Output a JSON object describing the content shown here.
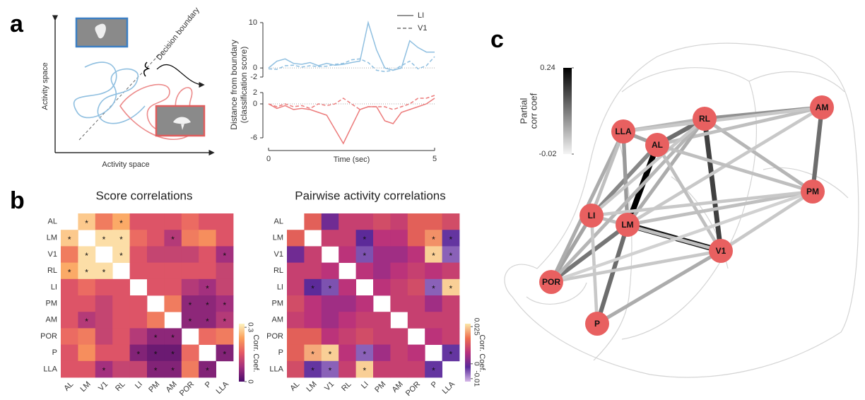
{
  "panel_labels": [
    "a",
    "b",
    "c"
  ],
  "schematic": {
    "x_label": "Activity space",
    "y_label": "Activity space",
    "boundary_label": "Decision boundary"
  },
  "chart_data": [
    {
      "type": "line",
      "y_label": [
        "Distance from boundary",
        "(classification score)"
      ],
      "x": [
        0,
        0.25,
        0.5,
        0.75,
        1,
        1.25,
        1.5,
        1.75,
        2,
        2.25,
        2.5,
        2.75,
        3,
        3.25,
        3.5,
        3.75,
        4,
        4.25,
        4.5,
        4.75,
        5
      ],
      "xlim": [
        0,
        5
      ],
      "ylim": [
        -2.5,
        10.5
      ],
      "yticks": [
        10,
        0,
        -2
      ],
      "series": [
        {
          "name": "LI",
          "color": "#8fbfe0",
          "dash": false,
          "values": [
            0,
            1.5,
            2,
            1,
            0.8,
            1.2,
            0.5,
            1,
            0.6,
            0.8,
            1.2,
            1.5,
            10,
            4,
            0,
            -0.5,
            0,
            6,
            4.5,
            3.5,
            3.5
          ]
        },
        {
          "name": "V1",
          "color": "#8fbfe0",
          "dash": true,
          "values": [
            -0.2,
            -0.3,
            0.5,
            0.6,
            0.2,
            0.5,
            0.3,
            0.4,
            0.8,
            1,
            1.8,
            2,
            1.2,
            -0.5,
            -0.8,
            -0.5,
            0.5,
            1.5,
            -0.2,
            0.5,
            2.5
          ]
        }
      ]
    },
    {
      "type": "line",
      "x_label": "Time (sec)",
      "x": [
        0,
        0.25,
        0.5,
        0.75,
        1,
        1.25,
        1.5,
        1.75,
        2,
        2.25,
        2.5,
        2.75,
        3,
        3.25,
        3.5,
        3.75,
        4,
        4.25,
        4.5,
        4.75,
        5
      ],
      "xlim": [
        0,
        5
      ],
      "xticks": [
        0,
        5
      ],
      "ylim": [
        -7.5,
        2.5
      ],
      "yticks": [
        2,
        0,
        -6
      ],
      "series": [
        {
          "color": "#ec7b7b",
          "dash": false,
          "values": [
            0,
            -0.8,
            -0.3,
            -1,
            -0.8,
            -1,
            -1.5,
            -2,
            -4.5,
            -7,
            -4,
            -1,
            -0.5,
            -0.5,
            -3,
            -3.5,
            -1.5,
            -1,
            -0.5,
            0,
            1
          ]
        },
        {
          "color": "#ec7b7b",
          "dash": true,
          "values": [
            0,
            -0.5,
            0,
            -0.5,
            -0.3,
            -0.8,
            0,
            -0.3,
            0,
            1,
            0,
            -1,
            -0.5,
            -0.5,
            -0.5,
            -1,
            -0.5,
            0,
            1,
            1,
            1.5
          ]
        }
      ]
    },
    {
      "type": "heatmap",
      "title": "Score correlations",
      "categories": [
        "AL",
        "LM",
        "V1",
        "RL",
        "LI",
        "PM",
        "AM",
        "POR",
        "P",
        "LLA"
      ],
      "values": [
        [
          null,
          0.28,
          0.2,
          0.25,
          0.15,
          0.15,
          0.15,
          0.18,
          0.15,
          0.15
        ],
        [
          0.28,
          null,
          0.3,
          0.3,
          0.18,
          0.15,
          0.1,
          0.2,
          0.22,
          0.15
        ],
        [
          0.2,
          0.3,
          null,
          0.3,
          0.15,
          0.12,
          0.12,
          0.12,
          0.15,
          0.08
        ],
        [
          0.25,
          0.3,
          0.3,
          null,
          0.15,
          0.15,
          0.15,
          0.15,
          0.15,
          0.12
        ],
        [
          0.15,
          0.18,
          0.15,
          0.15,
          null,
          0.15,
          0.15,
          0.1,
          0.08,
          0.12
        ],
        [
          0.15,
          0.15,
          0.12,
          0.15,
          0.15,
          null,
          0.2,
          0.06,
          0.06,
          0.08
        ],
        [
          0.15,
          0.1,
          0.12,
          0.15,
          0.15,
          0.2,
          null,
          0.06,
          0.06,
          0.1
        ],
        [
          0.18,
          0.2,
          0.12,
          0.15,
          0.1,
          0.06,
          0.06,
          null,
          0.18,
          0.2
        ],
        [
          0.15,
          0.22,
          0.15,
          0.15,
          0.05,
          0.03,
          0.03,
          0.18,
          null,
          0.05
        ],
        [
          0.15,
          0.15,
          0.08,
          0.12,
          0.12,
          0.05,
          0.05,
          0.2,
          0.05,
          null
        ]
      ],
      "star_label": "*",
      "stars": [
        [
          0,
          1
        ],
        [
          0,
          3
        ],
        [
          1,
          0
        ],
        [
          1,
          2
        ],
        [
          1,
          3
        ],
        [
          1,
          6
        ],
        [
          2,
          1
        ],
        [
          2,
          3
        ],
        [
          2,
          9
        ],
        [
          3,
          0
        ],
        [
          3,
          1
        ],
        [
          3,
          2
        ],
        [
          4,
          8
        ],
        [
          5,
          7
        ],
        [
          5,
          8
        ],
        [
          5,
          9
        ],
        [
          6,
          1
        ],
        [
          6,
          7
        ],
        [
          6,
          8
        ],
        [
          6,
          9
        ],
        [
          7,
          5
        ],
        [
          7,
          6
        ],
        [
          8,
          4
        ],
        [
          8,
          5
        ],
        [
          8,
          6
        ],
        [
          8,
          9
        ],
        [
          9,
          2
        ],
        [
          9,
          5
        ],
        [
          9,
          6
        ],
        [
          9,
          8
        ]
      ],
      "colorbar": {
        "lim": [
          0,
          0.32
        ],
        "ticks": [
          0.3,
          0
        ],
        "label": "Corr. Coef.",
        "colors": [
          "#4a0c6b",
          "#a3307e",
          "#e55964",
          "#fb9f5a",
          "#fcf3c0"
        ]
      }
    },
    {
      "type": "heatmap",
      "title": "Pairwise activity correlations",
      "categories": [
        "AL",
        "LM",
        "V1",
        "RL",
        "LI",
        "PM",
        "AM",
        "POR",
        "P",
        "LLA"
      ],
      "values": [
        [
          null,
          0.015,
          0,
          0.01,
          0.01,
          0.012,
          0.01,
          0.015,
          0.015,
          0.012
        ],
        [
          0.015,
          null,
          0.01,
          0.01,
          -0.002,
          0.008,
          0.008,
          0.015,
          0.02,
          -0.003
        ],
        [
          0,
          0.01,
          null,
          0.008,
          -0.005,
          0.005,
          0.005,
          0.008,
          0.025,
          -0.006
        ],
        [
          0.01,
          0.01,
          0.008,
          null,
          0.008,
          0.005,
          0.008,
          0.01,
          0.008,
          0.01
        ],
        [
          0.01,
          -0.002,
          -0.005,
          0.008,
          null,
          0.008,
          0.01,
          0.012,
          -0.006,
          0.025
        ],
        [
          0.012,
          0.008,
          0.005,
          0.005,
          0.008,
          null,
          0.01,
          0.01,
          0.005,
          0.01
        ],
        [
          0.01,
          0.008,
          0.005,
          0.008,
          0.01,
          0.01,
          null,
          0.01,
          0.01,
          0.01
        ],
        [
          0.015,
          0.015,
          0.008,
          0.01,
          0.012,
          0.01,
          0.01,
          null,
          0.008,
          0.01
        ],
        [
          0.015,
          0.022,
          0.025,
          0.008,
          -0.006,
          0.005,
          0.01,
          0.008,
          null,
          -0.003
        ],
        [
          0.012,
          -0.003,
          -0.006,
          0.01,
          0.025,
          0.01,
          0.01,
          0.01,
          -0.003,
          null
        ]
      ],
      "star_label": "*",
      "stars": [
        [
          1,
          4
        ],
        [
          1,
          8
        ],
        [
          1,
          9
        ],
        [
          2,
          4
        ],
        [
          2,
          8
        ],
        [
          2,
          9
        ],
        [
          4,
          1
        ],
        [
          4,
          2
        ],
        [
          4,
          8
        ],
        [
          4,
          9
        ],
        [
          8,
          1
        ],
        [
          8,
          2
        ],
        [
          8,
          4
        ],
        [
          8,
          9
        ],
        [
          9,
          1
        ],
        [
          9,
          2
        ],
        [
          9,
          4
        ],
        [
          9,
          8
        ]
      ],
      "colorbar": {
        "lim": [
          -0.012,
          0.027
        ],
        "ticks": [
          0.025,
          0,
          -0.01
        ],
        "label": "Corr. Coef.",
        "colors": [
          "#d6b8e8",
          "#5a2a9a",
          "#b8307c",
          "#ef6e4e",
          "#fbe8a8"
        ]
      }
    },
    {
      "type": "network",
      "node_color": "#e86060",
      "nodes": [
        "AL",
        "LM",
        "V1",
        "RL",
        "LI",
        "PM",
        "AM",
        "POR",
        "P",
        "LLA"
      ],
      "edges": [
        {
          "from": 0,
          "to": 1,
          "value": 0.24
        },
        {
          "from": 1,
          "to": 2,
          "value": 0.22
        },
        {
          "from": 3,
          "to": 2,
          "value": 0.17
        },
        {
          "from": 0,
          "to": 3,
          "value": 0.12
        },
        {
          "from": 6,
          "to": 5,
          "value": 0.12
        },
        {
          "from": 1,
          "to": 8,
          "value": 0.12
        },
        {
          "from": 1,
          "to": 7,
          "value": 0.11
        },
        {
          "from": 3,
          "to": 6,
          "value": 0.08
        },
        {
          "from": 9,
          "to": 0,
          "value": 0.06
        },
        {
          "from": 4,
          "to": 0,
          "value": 0.09
        },
        {
          "from": 9,
          "to": 1,
          "value": 0.07
        },
        {
          "from": 4,
          "to": 7,
          "value": 0.06
        },
        {
          "from": 8,
          "to": 2,
          "value": 0.05
        },
        {
          "from": 3,
          "to": 5,
          "value": 0.04
        },
        {
          "from": 0,
          "to": 6,
          "value": 0.03
        },
        {
          "from": 1,
          "to": 3,
          "value": 0.05
        },
        {
          "from": 1,
          "to": 6,
          "value": 0.02
        },
        {
          "from": 4,
          "to": 2,
          "value": 0.03
        },
        {
          "from": 3,
          "to": 7,
          "value": 0.04
        },
        {
          "from": 9,
          "to": 7,
          "value": 0.05
        },
        {
          "from": 0,
          "to": 2,
          "value": 0.03
        },
        {
          "from": 1,
          "to": 5,
          "value": 0.03
        },
        {
          "from": 4,
          "to": 3,
          "value": 0.02
        },
        {
          "from": 9,
          "to": 3,
          "value": 0.04
        },
        {
          "from": 2,
          "to": 5,
          "value": 0.02
        },
        {
          "from": 4,
          "to": 5,
          "value": 0.02
        },
        {
          "from": 7,
          "to": 2,
          "value": 0.02
        },
        {
          "from": 8,
          "to": 4,
          "value": 0.02
        },
        {
          "from": 9,
          "to": 4,
          "value": 0.03
        },
        {
          "from": 9,
          "to": 6,
          "value": 0.02
        },
        {
          "from": 0,
          "to": 5,
          "value": 0.03
        },
        {
          "from": 7,
          "to": 5,
          "value": 0.01
        }
      ],
      "colorbar": {
        "lim": [
          -0.02,
          0.24
        ],
        "ticks": [
          0.24,
          -0.02
        ],
        "label": [
          "Partial",
          "corr coef"
        ]
      }
    }
  ]
}
